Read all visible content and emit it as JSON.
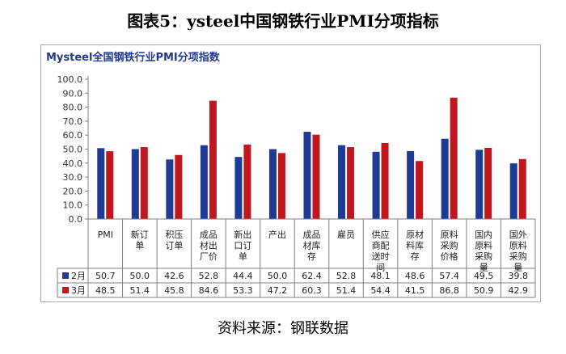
{
  "figure_title": "图表5：ysteel中国钢铁行业PMI分项指标",
  "source": "资料来源：钢联数据",
  "colors": {
    "series1": "#1f3a93",
    "series2": "#c0161d",
    "axis": "#808080"
  },
  "chart_data": {
    "type": "bar",
    "title": "Mysteel全国钢铁行业PMI分项指数",
    "categories": [
      [
        "PMI"
      ],
      [
        "新订",
        "单"
      ],
      [
        "积压",
        "订单"
      ],
      [
        "成品",
        "材出",
        "厂价"
      ],
      [
        "新出",
        "口订",
        "单"
      ],
      [
        "产出"
      ],
      [
        "成品",
        "材库",
        "存"
      ],
      [
        "雇员"
      ],
      [
        "供应",
        "商配",
        "送时",
        "间"
      ],
      [
        "原材",
        "料库",
        "存"
      ],
      [
        "原料",
        "采购",
        "价格"
      ],
      [
        "国内",
        "原料",
        "采购",
        "量"
      ],
      [
        "国外",
        "原料",
        "采购",
        "量"
      ]
    ],
    "series": [
      {
        "name": "2月",
        "values": [
          50.7,
          50.0,
          42.6,
          52.8,
          44.4,
          50.0,
          62.4,
          52.8,
          48.1,
          48.6,
          57.4,
          49.5,
          39.8
        ]
      },
      {
        "name": "3月",
        "values": [
          48.5,
          51.4,
          45.8,
          84.6,
          53.3,
          47.2,
          60.3,
          51.4,
          54.4,
          41.5,
          86.8,
          50.9,
          42.9
        ]
      }
    ],
    "value_labels": [
      [
        "50.7",
        "50.0",
        "42.6",
        "52.8",
        "44.4",
        "50.0",
        "62.4",
        "52.8",
        "48.1",
        "48.6",
        "57.4",
        "49.5",
        "39.8"
      ],
      [
        "48.5",
        "51.4",
        "45.8",
        "84.6",
        "53.3",
        "47.2",
        "60.3",
        "51.4",
        "54.4",
        "41.5",
        "86.8",
        "50.9",
        "42.9"
      ]
    ],
    "ylim": [
      0,
      100
    ],
    "yticks": [
      "0.0",
      "10.0",
      "20.0",
      "30.0",
      "40.0",
      "50.0",
      "60.0",
      "70.0",
      "80.0",
      "90.0",
      "100.0"
    ],
    "legend": "data-table",
    "grid": false
  }
}
